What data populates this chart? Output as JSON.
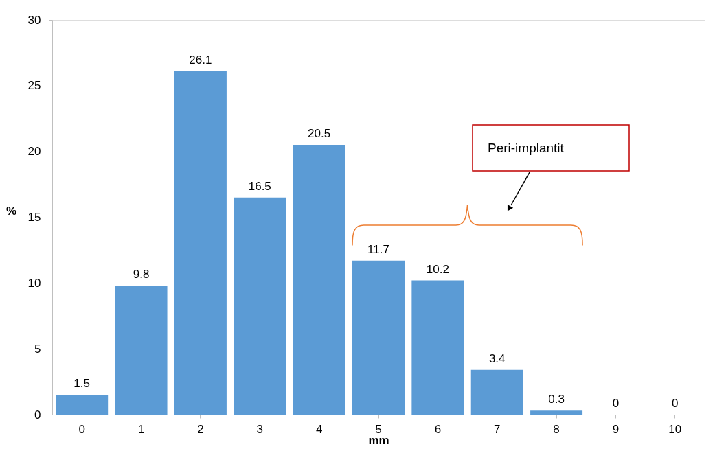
{
  "chart_data": {
    "type": "bar",
    "xlabel": "mm",
    "ylabel": "%",
    "categories": [
      "0",
      "1",
      "2",
      "3",
      "4",
      "5",
      "6",
      "7",
      "8",
      "9",
      "10"
    ],
    "values": [
      1.5,
      9.8,
      26.1,
      16.5,
      20.5,
      11.7,
      10.2,
      3.4,
      0.3,
      0,
      0
    ],
    "color": "#5b9bd5",
    "ylim": [
      0,
      30
    ],
    "yticks": [
      0,
      5,
      10,
      15,
      20,
      25,
      30
    ],
    "grid": false,
    "data_labels": true,
    "annotations": [
      "Peri-implantit"
    ]
  }
}
